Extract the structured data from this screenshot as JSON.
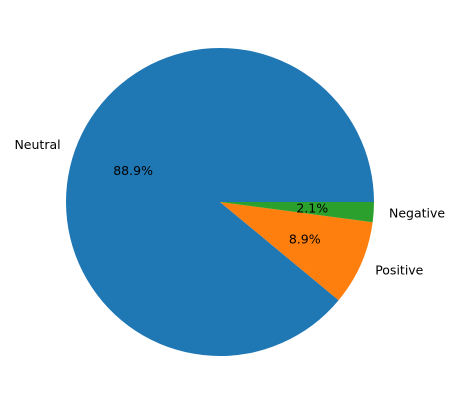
{
  "chart_data": {
    "type": "pie",
    "title": "",
    "categories": [
      "Neutral",
      "Positive",
      "Negative"
    ],
    "values": [
      88.9,
      8.9,
      2.1
    ],
    "value_labels": [
      "88.9%",
      "8.9%",
      "2.1%"
    ],
    "colors": [
      "#1f77b4",
      "#ff7f0e",
      "#2ca02c"
    ],
    "start_angle_deg": 0,
    "direction": "counterclockwise",
    "legend": "none"
  }
}
